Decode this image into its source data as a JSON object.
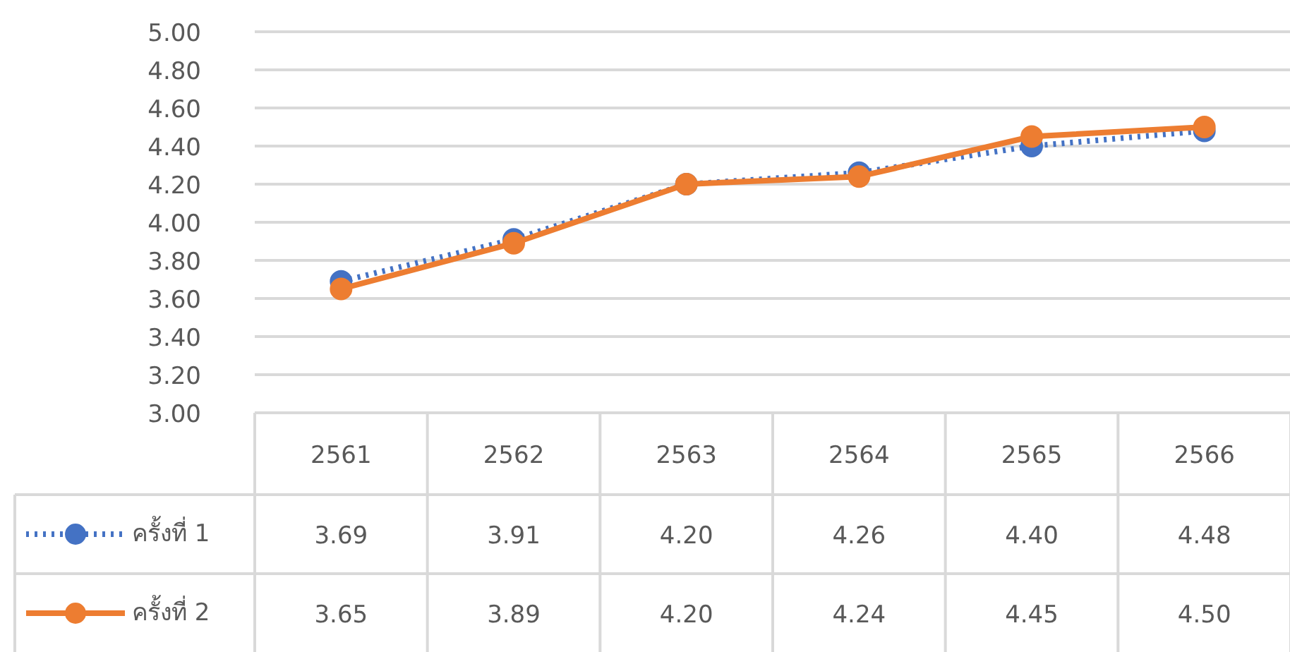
{
  "chart_data": {
    "type": "line",
    "categories": [
      "2561",
      "2562",
      "2563",
      "2564",
      "2565",
      "2566"
    ],
    "series": [
      {
        "name": "ครั้งที่ 1",
        "color": "#4472c4",
        "line_style": "dotted",
        "marker": "circle",
        "values": [
          3.69,
          3.91,
          4.2,
          4.26,
          4.4,
          4.48
        ],
        "value_labels": [
          "3.69",
          "3.91",
          "4.20",
          "4.26",
          "4.40",
          "4.48"
        ]
      },
      {
        "name": "ครั้งที่ 2",
        "color": "#ed7d31",
        "line_style": "solid",
        "marker": "circle",
        "values": [
          3.65,
          3.89,
          4.2,
          4.24,
          4.45,
          4.5
        ],
        "value_labels": [
          "3.65",
          "3.89",
          "4.20",
          "4.24",
          "4.45",
          "4.50"
        ]
      }
    ],
    "ylim": [
      3,
      5
    ],
    "yticks": [
      {
        "value": 3,
        "label": "3.00"
      },
      {
        "value": 3.2,
        "label": "3.20"
      },
      {
        "value": 3.4,
        "label": "3.40"
      },
      {
        "value": 3.6,
        "label": "3.60"
      },
      {
        "value": 3.8,
        "label": "3.80"
      },
      {
        "value": 4,
        "label": "4.00"
      },
      {
        "value": 4.2,
        "label": "4.20"
      },
      {
        "value": 4.4,
        "label": "4.40"
      },
      {
        "value": 4.6,
        "label": "4.60"
      },
      {
        "value": 4.8,
        "label": "4.80"
      },
      {
        "value": 5,
        "label": "5.00"
      }
    ],
    "grid": "y",
    "legend": "bottom"
  }
}
